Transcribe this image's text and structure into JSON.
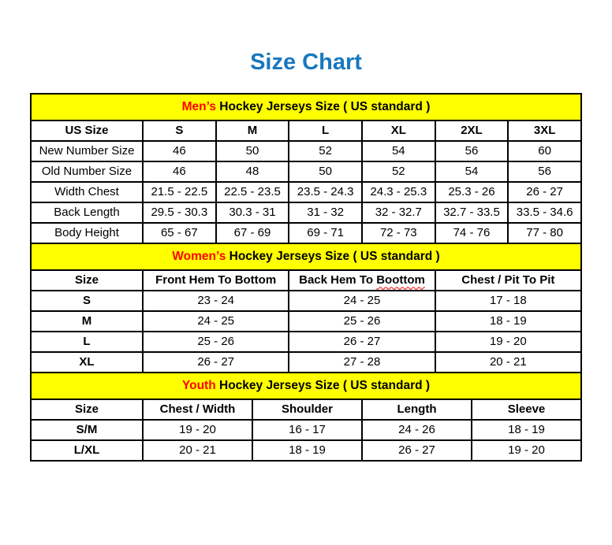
{
  "page": {
    "title": "Size Chart"
  },
  "colors": {
    "title_blue": "#1878BE",
    "band_yellow": "#FFFF00",
    "accent_red": "#FF0000",
    "border_black": "#000000"
  },
  "men": {
    "band": {
      "highlight": "Men’s",
      "rest": " Hockey Jerseys Size ( US standard )"
    },
    "columns": [
      "US Size",
      "S",
      "M",
      "L",
      "XL",
      "2XL",
      "3XL"
    ],
    "rows": [
      {
        "label": "New Number Size",
        "values": [
          "46",
          "50",
          "52",
          "54",
          "56",
          "60"
        ]
      },
      {
        "label": "Old Number Size",
        "values": [
          "46",
          "48",
          "50",
          "52",
          "54",
          "56"
        ]
      },
      {
        "label": "Width Chest",
        "values": [
          "21.5 - 22.5",
          "22.5 - 23.5",
          "23.5 - 24.3",
          "24.3 - 25.3",
          "25.3 - 26",
          "26 - 27"
        ]
      },
      {
        "label": "Back Length",
        "values": [
          "29.5 - 30.3",
          "30.3 - 31",
          "31 - 32",
          "32 - 32.7",
          "32.7 - 33.5",
          "33.5 - 34.6"
        ]
      },
      {
        "label": "Body Height",
        "values": [
          "65 - 67",
          "67 - 69",
          "69 - 71",
          "72 - 73",
          "74 - 76",
          "77 - 80"
        ]
      }
    ]
  },
  "women": {
    "band": {
      "highlight": "Women’s",
      "rest": " Hockey Jerseys Size ( US standard )"
    },
    "columns": {
      "size": "Size",
      "front_hem": "Front Hem To Bottom",
      "back_hem_prefix": "Back Hem To ",
      "back_hem_misspelled": "Boottom",
      "chest": "Chest / Pit To Pit"
    },
    "rows": [
      {
        "label": "S",
        "values": [
          "23 - 24",
          "24 - 25",
          "17 - 18"
        ]
      },
      {
        "label": "M",
        "values": [
          "24 - 25",
          "25 - 26",
          "18 - 19"
        ]
      },
      {
        "label": "L",
        "values": [
          "25 - 26",
          "26 - 27",
          "19 - 20"
        ]
      },
      {
        "label": "XL",
        "values": [
          "26 - 27",
          "27 - 28",
          "20 - 21"
        ]
      }
    ]
  },
  "youth": {
    "band": {
      "highlight": "Youth",
      "rest": " Hockey Jerseys Size ( US standard )"
    },
    "columns": [
      "Size",
      "Chest / Width",
      "Shoulder",
      "Length",
      "Sleeve"
    ],
    "rows": [
      {
        "label": "S/M",
        "values": [
          "19 - 20",
          "16 - 17",
          "24 - 26",
          "18 - 19"
        ]
      },
      {
        "label": "L/XL",
        "values": [
          "20 - 21",
          "18 - 19",
          "26 - 27",
          "19 - 20"
        ]
      }
    ]
  }
}
